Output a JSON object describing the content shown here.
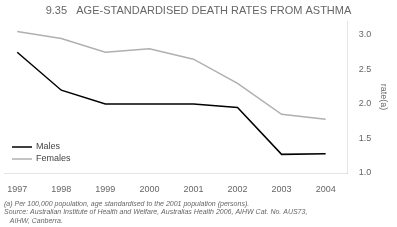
{
  "chart_data": {
    "type": "line",
    "title": "9.35   AGE-STANDARDISED DEATH RATES FROM ASTHMA",
    "ylabel": "rate(a)",
    "annotations": [
      "(a) Per 100,000 population, age standardised to the 2001 population (persons).",
      "Source: Australian Institute of Health and Welfare, Australias Health 2006, AIHW Cat. No. AUS73,",
      "   AIHW, Canberra."
    ],
    "x": [
      1997,
      1998,
      1999,
      2000,
      2001,
      2002,
      2003,
      2004
    ],
    "series": [
      {
        "name": "Females",
        "color": "#b0b0b0",
        "values": [
          3.05,
          2.95,
          2.75,
          2.8,
          2.65,
          2.3,
          1.85,
          1.78
        ]
      },
      {
        "name": "Males",
        "color": "#000000",
        "values": [
          2.75,
          2.2,
          2.0,
          2.0,
          2.0,
          1.95,
          1.27,
          1.28
        ]
      }
    ],
    "xlim": [
      1996.7,
      2004.5
    ],
    "xticks": [
      1997,
      1998,
      1999,
      2000,
      2001,
      2002,
      2003,
      2004
    ],
    "ylim": [
      1.0,
      3.2
    ],
    "yticks": [
      {
        "value": 1.0,
        "label": "1.0"
      },
      1.5,
      {
        "value": 2.0,
        "label": "2.0"
      },
      2.5,
      {
        "value": 3.0,
        "label": "3.0"
      }
    ],
    "grid": false,
    "legend": "lower left"
  }
}
